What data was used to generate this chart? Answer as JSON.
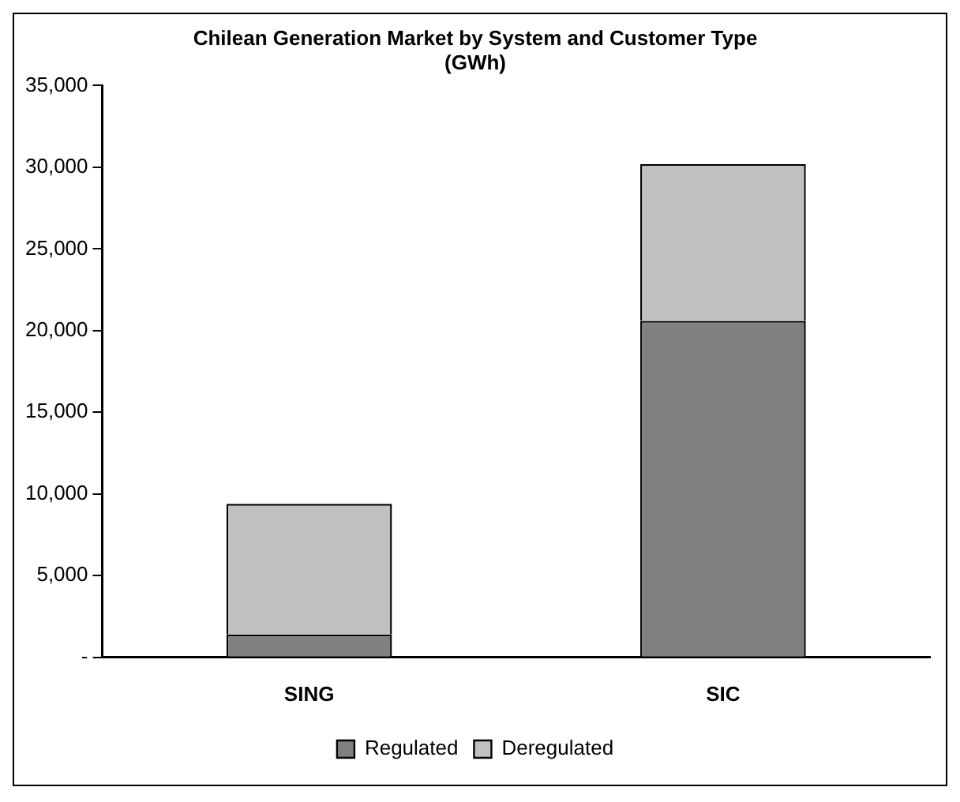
{
  "chart_data": {
    "type": "bar",
    "title": "Chilean Generation Market by System and Customer Type",
    "subtitle": "(GWh)",
    "categories": [
      "SING",
      "SIC"
    ],
    "stacked": true,
    "series": [
      {
        "name": "Regulated",
        "color": "#808080",
        "values": [
          1400,
          20600
        ]
      },
      {
        "name": "Deregulated",
        "color": "#c0c0c0",
        "values": [
          8000,
          9600
        ]
      }
    ],
    "ylim": [
      0,
      35000
    ],
    "yticks": [
      {
        "value": 0,
        "label": "-"
      },
      {
        "value": 5000,
        "label": "5,000"
      },
      {
        "value": 10000,
        "label": "10,000"
      },
      {
        "value": 15000,
        "label": "15,000"
      },
      {
        "value": 20000,
        "label": "20,000"
      },
      {
        "value": 25000,
        "label": "25,000"
      },
      {
        "value": 30000,
        "label": "30,000"
      },
      {
        "value": 35000,
        "label": "35,000"
      }
    ],
    "grid": false,
    "legend": "bottom"
  }
}
